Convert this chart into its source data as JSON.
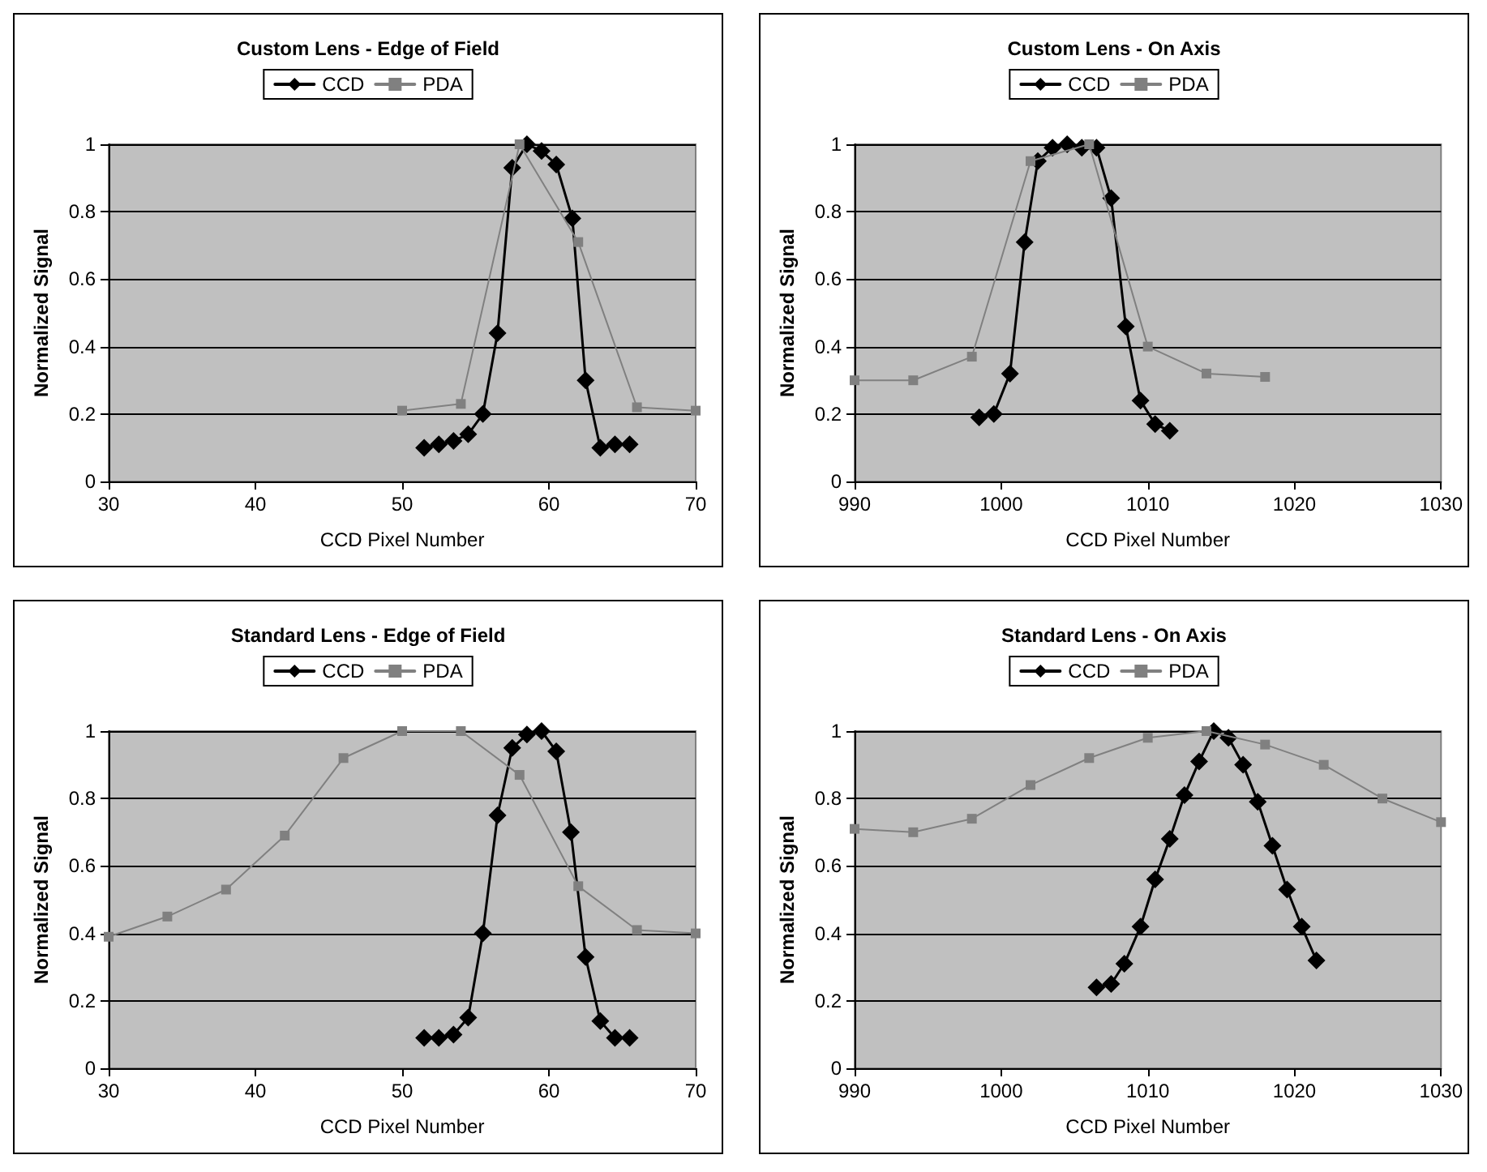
{
  "chart_data": [
    {
      "type": "line",
      "title": "Custom Lens - Edge of Field",
      "xlabel": "CCD Pixel Number",
      "ylabel": "Normalized Signal",
      "xlim": [
        30,
        70
      ],
      "xticks": [
        30,
        40,
        50,
        60,
        70
      ],
      "ylim": [
        0,
        1
      ],
      "yticks": [
        0,
        0.2,
        0.4,
        0.6,
        0.8,
        1
      ],
      "grid": "y",
      "legend": "top",
      "series": [
        {
          "name": "CCD",
          "color": "#000000",
          "marker": "diamond",
          "x": [
            51.5,
            52.5,
            53.5,
            54.5,
            55.5,
            56.5,
            57.5,
            58.5,
            59.5,
            60.5,
            61.6,
            62.5,
            63.5,
            64.5,
            65.5
          ],
          "values": [
            0.1,
            0.11,
            0.12,
            0.14,
            0.2,
            0.44,
            0.93,
            1.0,
            0.98,
            0.94,
            0.78,
            0.3,
            0.1,
            0.11,
            0.11
          ]
        },
        {
          "name": "PDA",
          "color": "#808080",
          "marker": "square",
          "x": [
            50,
            54,
            58,
            62,
            66,
            70
          ],
          "values": [
            0.21,
            0.23,
            1.0,
            0.71,
            0.22,
            0.21
          ]
        }
      ]
    },
    {
      "type": "line",
      "title": "Custom Lens - On Axis",
      "xlabel": "CCD Pixel Number",
      "ylabel": "Normalized Signal",
      "xlim": [
        990,
        1030
      ],
      "xticks": [
        990,
        1000,
        1010,
        1020,
        1030
      ],
      "ylim": [
        0,
        1
      ],
      "yticks": [
        0,
        0.2,
        0.4,
        0.6,
        0.8,
        1
      ],
      "grid": "y",
      "legend": "top",
      "series": [
        {
          "name": "CCD",
          "color": "#000000",
          "marker": "diamond",
          "x": [
            998.5,
            999.5,
            1000.6,
            1001.6,
            1002.5,
            1003.5,
            1004.5,
            1005.5,
            1006.5,
            1007.5,
            1008.5,
            1009.5,
            1010.5,
            1011.5
          ],
          "values": [
            0.19,
            0.2,
            0.32,
            0.71,
            0.95,
            0.99,
            1.0,
            0.99,
            0.99,
            0.84,
            0.46,
            0.24,
            0.17,
            0.15
          ]
        },
        {
          "name": "PDA",
          "color": "#808080",
          "marker": "square",
          "x": [
            990,
            994,
            998,
            1002,
            1006,
            1010,
            1014,
            1018
          ],
          "values": [
            0.3,
            0.3,
            0.37,
            0.95,
            1.0,
            0.4,
            0.32,
            0.31
          ]
        }
      ]
    },
    {
      "type": "line",
      "title": "Standard Lens - Edge of Field",
      "xlabel": "CCD Pixel Number",
      "ylabel": "Normalized Signal",
      "xlim": [
        30,
        70
      ],
      "xticks": [
        30,
        40,
        50,
        60,
        70
      ],
      "ylim": [
        0,
        1
      ],
      "yticks": [
        0,
        0.2,
        0.4,
        0.6,
        0.8,
        1
      ],
      "grid": "y",
      "legend": "top",
      "series": [
        {
          "name": "CCD",
          "color": "#000000",
          "marker": "diamond",
          "x": [
            51.5,
            52.5,
            53.5,
            54.5,
            55.5,
            56.5,
            57.5,
            58.5,
            59.5,
            60.5,
            61.5,
            62.5,
            63.5,
            64.5,
            65.5
          ],
          "values": [
            0.09,
            0.09,
            0.1,
            0.15,
            0.4,
            0.75,
            0.95,
            0.99,
            1.0,
            0.94,
            0.7,
            0.33,
            0.14,
            0.09,
            0.09
          ]
        },
        {
          "name": "PDA",
          "color": "#808080",
          "marker": "square",
          "x": [
            30,
            34,
            38,
            42,
            46,
            50,
            54,
            58,
            62,
            66,
            70
          ],
          "values": [
            0.39,
            0.45,
            0.53,
            0.69,
            0.92,
            1.0,
            1.0,
            0.87,
            0.54,
            0.41,
            0.4
          ]
        }
      ]
    },
    {
      "type": "line",
      "title": "Standard Lens - On Axis",
      "xlabel": "CCD Pixel Number",
      "ylabel": "Normalized Signal",
      "xlim": [
        990,
        1030
      ],
      "xticks": [
        990,
        1000,
        1010,
        1020,
        1030
      ],
      "ylim": [
        0,
        1
      ],
      "yticks": [
        0,
        0.2,
        0.4,
        0.6,
        0.8,
        1
      ],
      "grid": "y",
      "legend": "top",
      "series": [
        {
          "name": "CCD",
          "color": "#000000",
          "marker": "diamond",
          "x": [
            1006.5,
            1007.5,
            1008.4,
            1009.5,
            1010.5,
            1011.5,
            1012.5,
            1013.5,
            1014.5,
            1015.5,
            1016.5,
            1017.5,
            1018.5,
            1019.5,
            1020.5,
            1021.5
          ],
          "values": [
            0.24,
            0.25,
            0.31,
            0.42,
            0.56,
            0.68,
            0.81,
            0.91,
            1.0,
            0.98,
            0.9,
            0.79,
            0.66,
            0.53,
            0.42,
            0.32
          ]
        },
        {
          "name": "PDA",
          "color": "#808080",
          "marker": "square",
          "x": [
            990,
            994,
            998,
            1002,
            1006,
            1010,
            1014,
            1018,
            1022,
            1026,
            1030
          ],
          "values": [
            0.71,
            0.7,
            0.74,
            0.84,
            0.92,
            0.98,
            1.0,
            0.96,
            0.9,
            0.8,
            0.73
          ]
        }
      ]
    }
  ]
}
